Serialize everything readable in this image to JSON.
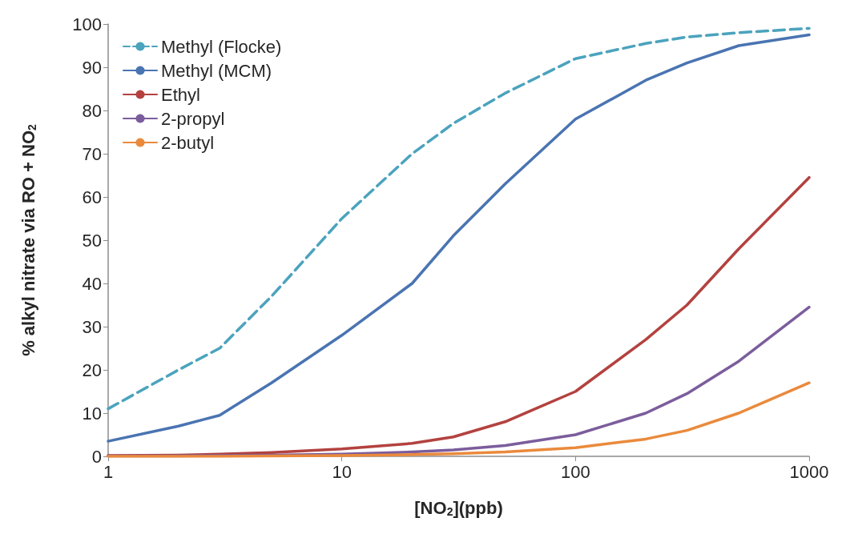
{
  "chart_data": {
    "type": "line",
    "xlabel": "[NO$_{2}$](ppb)",
    "ylabel": "% alkyl nitrate via RO + NO$_{2}$",
    "x": [
      1,
      2,
      3,
      5,
      10,
      20,
      30,
      50,
      100,
      200,
      300,
      500,
      1000
    ],
    "series": [
      {
        "name": "Methyl (Flocke)",
        "color": "#4ba3bd",
        "line_style": "dashed",
        "values": [
          11,
          20,
          25,
          37,
          55,
          70,
          77,
          84,
          92,
          95.5,
          97,
          98,
          99
        ]
      },
      {
        "name": "Methyl (MCM)",
        "color": "#4a74b2",
        "values": [
          3.5,
          7,
          9.5,
          17,
          28,
          40,
          51,
          63,
          78,
          87,
          91,
          95,
          97.5
        ]
      },
      {
        "name": "Ethyl",
        "color": "#b3423f",
        "values": [
          0.2,
          0.3,
          0.5,
          0.9,
          1.7,
          3,
          4.5,
          8,
          15,
          27,
          35,
          48,
          64.5
        ]
      },
      {
        "name": "2-propyl",
        "color": "#7b5d9c",
        "values": [
          0.1,
          0.1,
          0.2,
          0.3,
          0.5,
          1,
          1.5,
          2.5,
          5,
          10,
          14.5,
          22,
          34.5
        ]
      },
      {
        "name": "2-butyl",
        "color": "#ea8a3c",
        "values": [
          0,
          0,
          0,
          0.1,
          0.2,
          0.4,
          0.6,
          1,
          2,
          4,
          6,
          10,
          17
        ]
      }
    ],
    "xlim": [
      1,
      1000
    ],
    "xticks": [
      1,
      10,
      100,
      1000
    ],
    "log": "x",
    "ylim": [
      0,
      100
    ],
    "yticks": [
      0,
      10,
      20,
      30,
      40,
      50,
      60,
      70,
      80,
      90,
      100
    ],
    "grid": false,
    "legend": "top left",
    "marker": "none",
    "line_style": "solid"
  }
}
